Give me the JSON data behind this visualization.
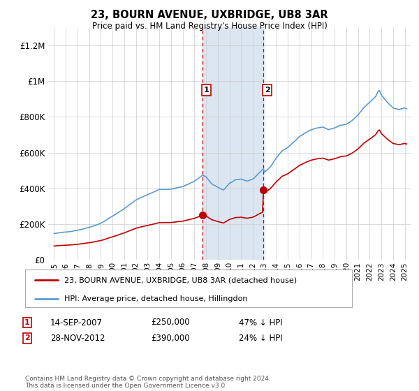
{
  "title": "23, BOURN AVENUE, UXBRIDGE, UB8 3AR",
  "subtitle": "Price paid vs. HM Land Registry's House Price Index (HPI)",
  "ylim": [
    0,
    1300000
  ],
  "yticks": [
    0,
    200000,
    400000,
    600000,
    800000,
    1000000,
    1200000
  ],
  "ytick_labels": [
    "£0",
    "£200K",
    "£400K",
    "£600K",
    "£800K",
    "£1M",
    "£1.2M"
  ],
  "sale1_date": "14-SEP-2007",
  "sale1_price": 250000,
  "sale1_hpi_text": "47% ↓ HPI",
  "sale1_year": 2007.71,
  "sale2_date": "28-NOV-2012",
  "sale2_price": 390000,
  "sale2_hpi_text": "24% ↓ HPI",
  "sale2_year": 2012.91,
  "hpi_color": "#5b9bd5",
  "price_color": "#c00000",
  "highlight_color": "#dce6f1",
  "legend_label1": "23, BOURN AVENUE, UXBRIDGE, UB8 3AR (detached house)",
  "legend_label2": "HPI: Average price, detached house, Hillingdon",
  "footer": "Contains HM Land Registry data © Crown copyright and database right 2024.\nThis data is licensed under the Open Government Licence v3.0."
}
